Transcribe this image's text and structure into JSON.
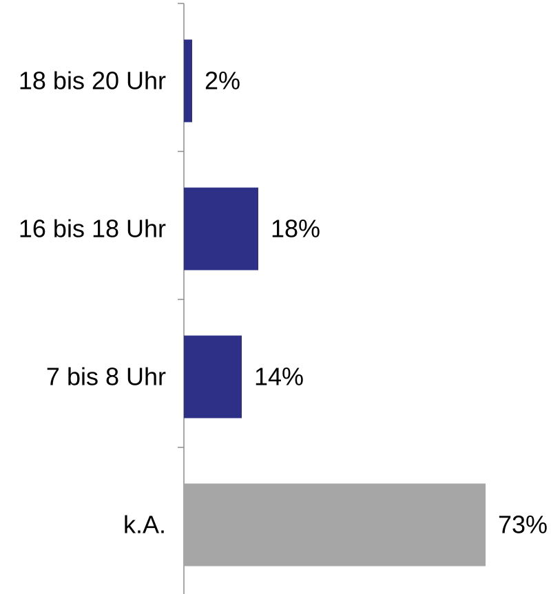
{
  "chart_data": {
    "type": "bar",
    "orientation": "horizontal",
    "categories": [
      "18 bis 20 Uhr",
      "16 bis 18 Uhr",
      "7 bis 8 Uhr",
      "k.A."
    ],
    "values": [
      2,
      18,
      14,
      73
    ],
    "value_labels": [
      "2%",
      "18%",
      "14%",
      "73%"
    ],
    "bar_colors": [
      "#2e3087",
      "#2e3087",
      "#2e3087",
      "#a6a6a6"
    ],
    "title": "",
    "xlabel": "",
    "ylabel": "",
    "xlim": [
      0,
      100
    ],
    "grid": false,
    "legend": "none"
  }
}
